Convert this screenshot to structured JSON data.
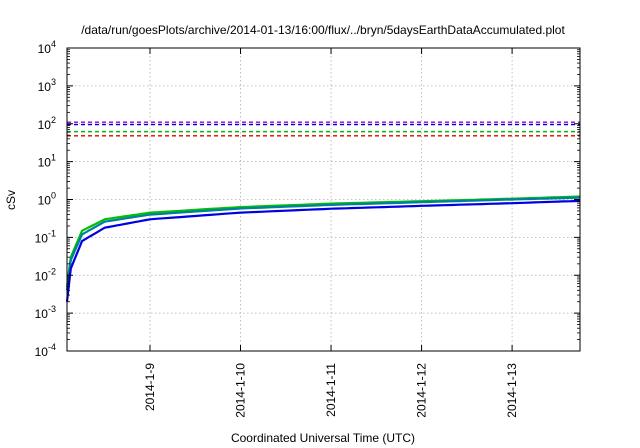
{
  "chart_data": {
    "type": "line",
    "title": "/data/run/goesPlots/archive/2014-01-13/16:00/flux/../bryn/5daysEarthDataAccumulated.plot",
    "xlabel": "Coordinated Universal Time (UTC)",
    "ylabel": "cSv",
    "y_scale": "log",
    "ylim": [
      0.0001,
      10000
    ],
    "xlim": [
      "2014-01-08T02:00",
      "2014-01-13T18:00"
    ],
    "grid": true,
    "legend": "none",
    "x_ticks": [
      "2014-1-9",
      "2014-1-10",
      "2014-1-11",
      "2014-1-12",
      "2014-1-13"
    ],
    "y_ticks": [
      {
        "base": "10",
        "exp": "-4"
      },
      {
        "base": "10",
        "exp": "-3"
      },
      {
        "base": "10",
        "exp": "-2"
      },
      {
        "base": "10",
        "exp": "-1"
      },
      {
        "base": "10",
        "exp": "0"
      },
      {
        "base": "10",
        "exp": "1"
      },
      {
        "base": "10",
        "exp": "2"
      },
      {
        "base": "10",
        "exp": "3"
      },
      {
        "base": "10",
        "exp": "4"
      }
    ],
    "threshold_lines": [
      {
        "value": 110,
        "color": "#9400d3",
        "style": "dashed"
      },
      {
        "value": 95,
        "color": "#0000cd",
        "style": "dashed"
      },
      {
        "value": 62,
        "color": "#00c000",
        "style": "dashed"
      },
      {
        "value": 48,
        "color": "#e00000",
        "style": "dashed"
      }
    ],
    "series": [
      {
        "color": "#00c000",
        "x": [
          "2014-01-08T02:00",
          "2014-01-08T03:00",
          "2014-01-08T06:00",
          "2014-01-08T12:00",
          "2014-01-09T00:00",
          "2014-01-10T00:00",
          "2014-01-11T00:00",
          "2014-01-12T00:00",
          "2014-01-13T00:00",
          "2014-01-13T18:00"
        ],
        "y": [
          0.005,
          0.03,
          0.15,
          0.3,
          0.45,
          0.63,
          0.78,
          0.9,
          1.05,
          1.2
        ]
      },
      {
        "color": "#0080a0",
        "x": [
          "2014-01-08T02:00",
          "2014-01-08T03:00",
          "2014-01-08T06:00",
          "2014-01-08T12:00",
          "2014-01-09T00:00",
          "2014-01-10T00:00",
          "2014-01-11T00:00",
          "2014-01-12T00:00",
          "2014-01-13T00:00",
          "2014-01-13T18:00"
        ],
        "y": [
          0.004,
          0.025,
          0.12,
          0.26,
          0.4,
          0.58,
          0.72,
          0.85,
          1.0,
          1.12
        ]
      },
      {
        "color": "#0000e0",
        "x": [
          "2014-01-08T02:00",
          "2014-01-08T03:00",
          "2014-01-08T06:00",
          "2014-01-08T12:00",
          "2014-01-09T00:00",
          "2014-01-10T00:00",
          "2014-01-11T00:00",
          "2014-01-12T00:00",
          "2014-01-13T00:00",
          "2014-01-13T18:00"
        ],
        "y": [
          0.002,
          0.015,
          0.08,
          0.18,
          0.3,
          0.45,
          0.57,
          0.68,
          0.8,
          0.92
        ]
      }
    ]
  }
}
